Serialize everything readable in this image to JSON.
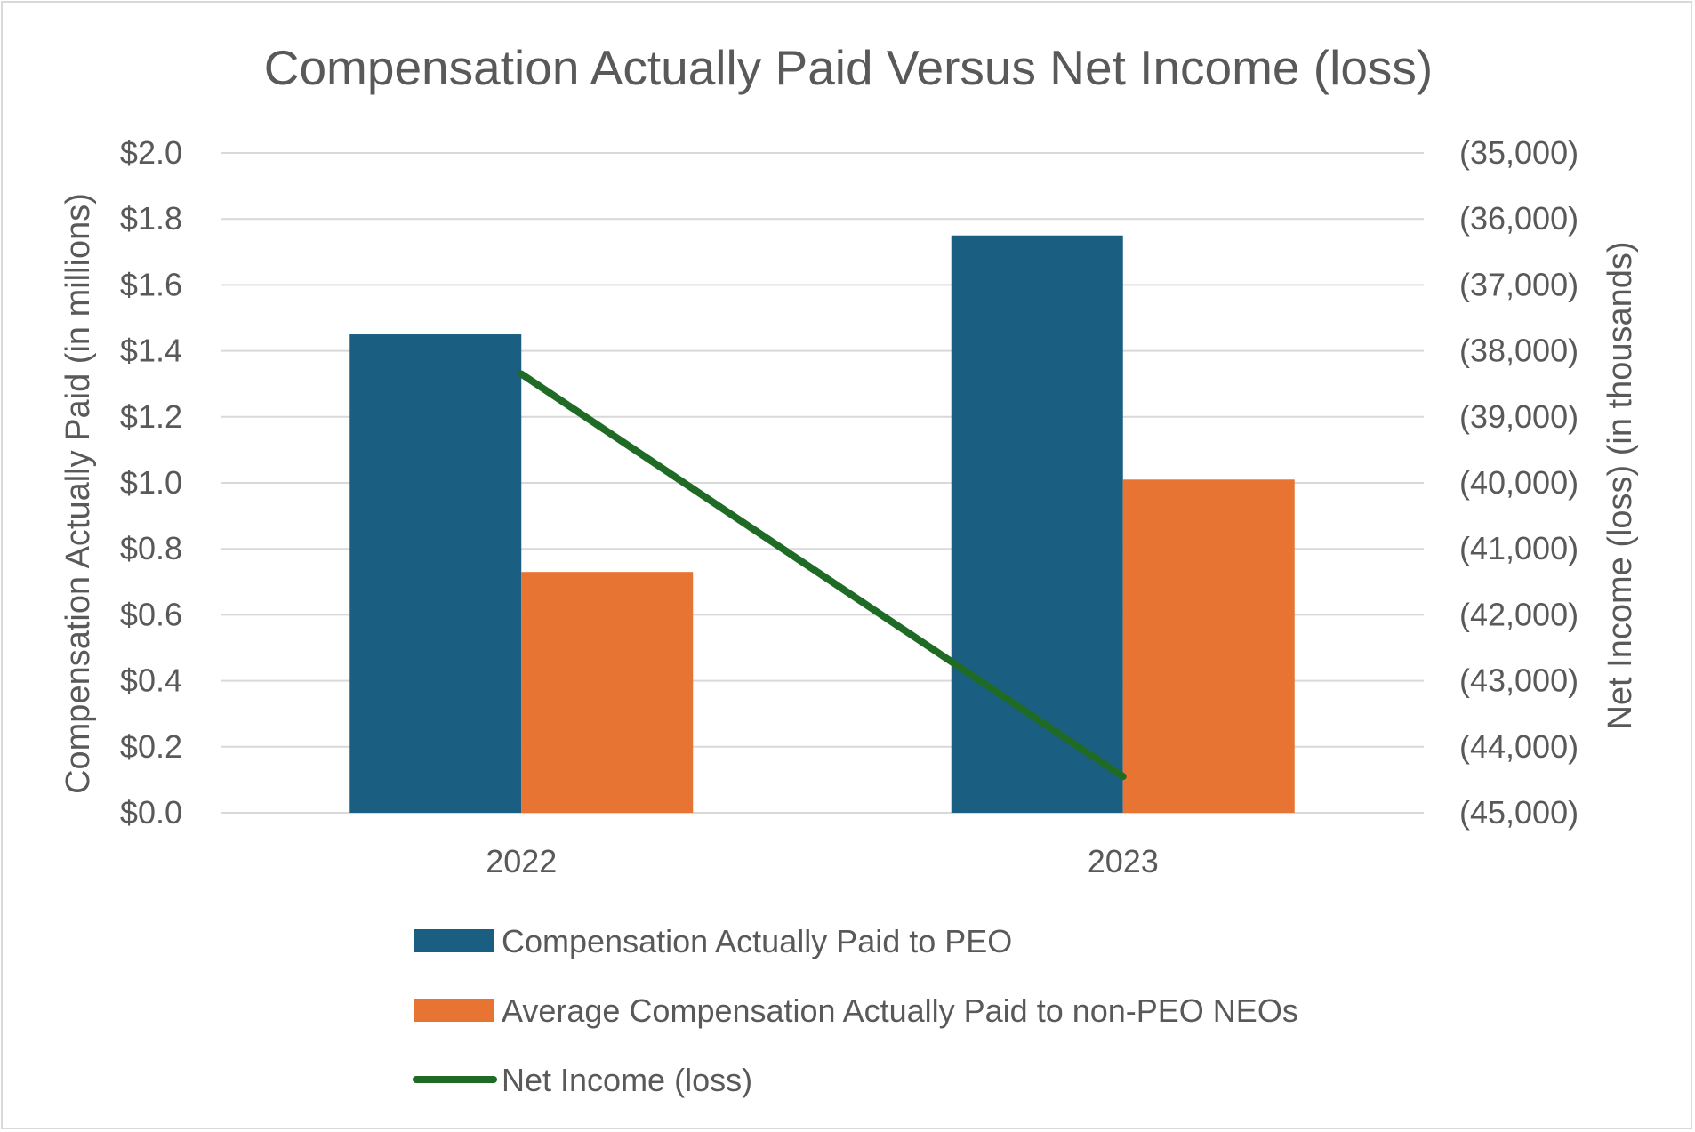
{
  "chart_data": {
    "type": "bar",
    "title": "Compensation Actually Paid Versus Net Income (loss)",
    "categories": [
      "2022",
      "2023"
    ],
    "xlabel": "",
    "ylabel": "Compensation Actually Paid (in millions)",
    "y2label": "Net Income (loss) (in thousands)",
    "ylim": [
      0,
      2.0
    ],
    "y2lim": [
      -45000,
      -35000
    ],
    "grid": true,
    "legend_position": "bottom",
    "y_ticks": [
      "$0.0",
      "$0.2",
      "$0.4",
      "$0.6",
      "$0.8",
      "$1.0",
      "$1.2",
      "$1.4",
      "$1.6",
      "$1.8",
      "$2.0"
    ],
    "y2_ticks": [
      "(45,000)",
      "(44,000)",
      "(43,000)",
      "(42,000)",
      "(41,000)",
      "(40,000)",
      "(39,000)",
      "(38,000)",
      "(37,000)",
      "(36,000)",
      "(35,000)"
    ],
    "series": [
      {
        "name": "Compensation Actually Paid to PEO",
        "type": "bar",
        "axis": "left",
        "color": "#1a5e82",
        "values": [
          1.45,
          1.75
        ]
      },
      {
        "name": "Average Compensation Actually Paid to non-PEO NEOs",
        "type": "bar",
        "axis": "left",
        "color": "#e87434",
        "values": [
          0.73,
          1.01
        ]
      },
      {
        "name": "Net Income (loss)",
        "type": "line",
        "axis": "right",
        "color": "#1f6b26",
        "values": [
          -38350,
          -44450
        ]
      }
    ]
  }
}
